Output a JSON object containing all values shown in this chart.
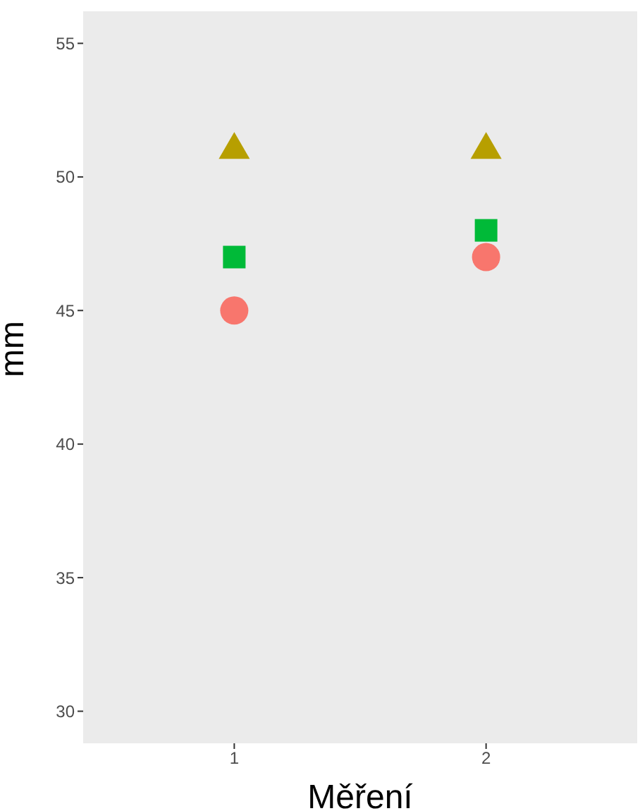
{
  "chart_data": {
    "type": "scatter",
    "xlabel": "Měření",
    "ylabel": "mm",
    "categories": [
      "1",
      "2"
    ],
    "series": [
      {
        "color": "#f8766d",
        "marker": "circle",
        "values": [
          45,
          47
        ]
      },
      {
        "color": "#00ba38",
        "marker": "square",
        "values": [
          47,
          48
        ]
      },
      {
        "color": "#b79f00",
        "marker": "triangle",
        "values": [
          51.1,
          51.1
        ]
      }
    ],
    "ylim": [
      28.8,
      56.2
    ],
    "yticks": [
      30,
      35,
      40,
      45,
      50,
      55
    ],
    "grid": false,
    "legend": false
  }
}
